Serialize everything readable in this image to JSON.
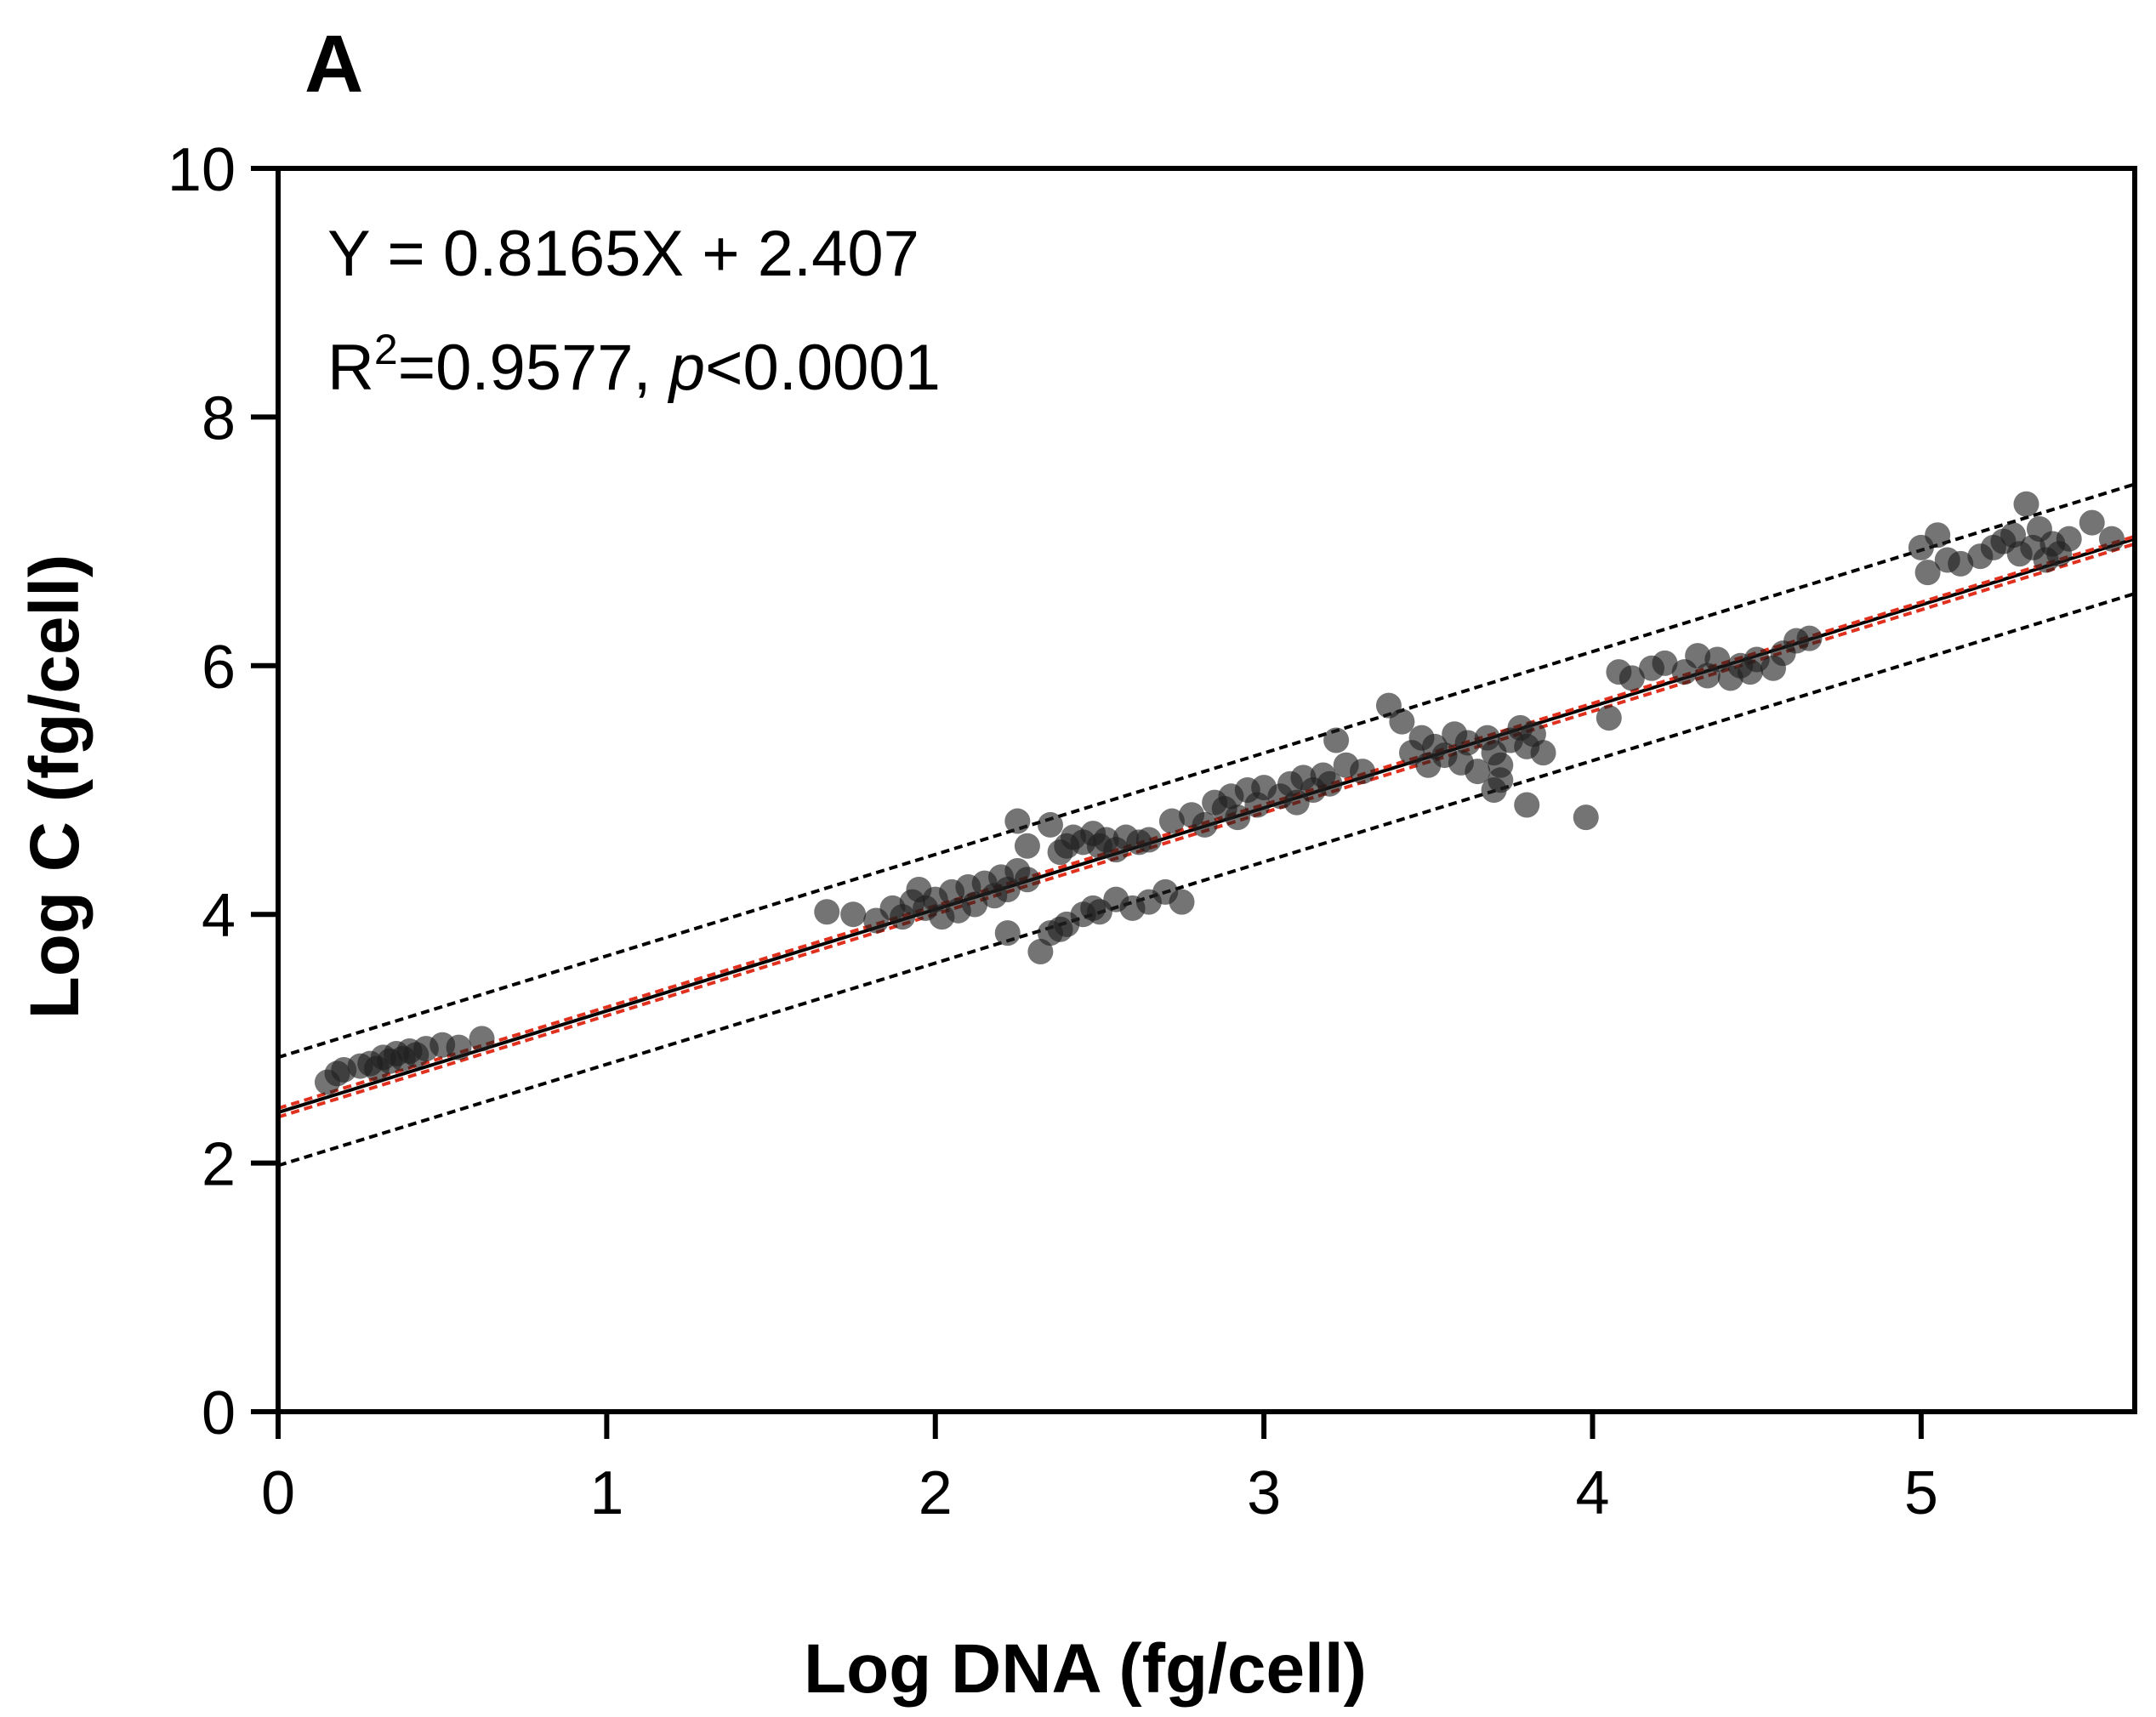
{
  "chart_data": {
    "type": "scatter",
    "panel_label": "A",
    "xlabel": "Log DNA (fg/cell)",
    "ylabel": "Log C (fg/cell)",
    "xlim": [
      0,
      5.65
    ],
    "ylim": [
      0,
      10
    ],
    "x_ticks": [
      "0",
      "1",
      "2",
      "3",
      "4",
      "5"
    ],
    "y_ticks": [
      "0",
      "2",
      "4",
      "6",
      "8",
      "10"
    ],
    "x_tick_values": [
      0,
      1,
      2,
      3,
      4,
      5
    ],
    "y_tick_values": [
      0,
      2,
      4,
      6,
      8,
      10
    ],
    "annotation": {
      "equation": "Y = 0.8165X + 2.407",
      "r2_prefix": "R",
      "r2_superscript": "2",
      "r2_value": "=0.9577, ",
      "p_symbol": "p",
      "p_value": "<0.0001"
    },
    "regression": {
      "slope": 0.8165,
      "intercept": 2.407,
      "color": "#000000"
    },
    "confidence_band": {
      "upper": [
        2.44,
        7.04
      ],
      "lower": [
        2.37,
        6.98
      ],
      "color": "#e0301e"
    },
    "prediction_band": {
      "upper": [
        2.85,
        7.46
      ],
      "lower": [
        1.98,
        6.58
      ],
      "color": "#000000"
    },
    "points": [
      [
        0.15,
        2.65
      ],
      [
        0.18,
        2.72
      ],
      [
        0.2,
        2.75
      ],
      [
        0.25,
        2.78
      ],
      [
        0.28,
        2.8
      ],
      [
        0.3,
        2.76
      ],
      [
        0.32,
        2.85
      ],
      [
        0.34,
        2.82
      ],
      [
        0.36,
        2.88
      ],
      [
        0.38,
        2.84
      ],
      [
        0.4,
        2.9
      ],
      [
        0.42,
        2.87
      ],
      [
        0.45,
        2.92
      ],
      [
        0.5,
        2.95
      ],
      [
        0.55,
        2.93
      ],
      [
        0.62,
        3.0
      ],
      [
        1.67,
        4.02
      ],
      [
        1.75,
        4.0
      ],
      [
        1.82,
        3.95
      ],
      [
        1.87,
        4.05
      ],
      [
        1.9,
        3.98
      ],
      [
        1.93,
        4.1
      ],
      [
        1.95,
        4.2
      ],
      [
        1.97,
        4.05
      ],
      [
        2.0,
        4.12
      ],
      [
        2.02,
        3.98
      ],
      [
        2.05,
        4.18
      ],
      [
        2.07,
        4.03
      ],
      [
        2.1,
        4.22
      ],
      [
        2.12,
        4.08
      ],
      [
        2.15,
        4.25
      ],
      [
        2.18,
        4.15
      ],
      [
        2.2,
        4.3
      ],
      [
        2.22,
        4.2
      ],
      [
        2.25,
        4.35
      ],
      [
        2.28,
        4.28
      ],
      [
        2.22,
        3.85
      ],
      [
        2.25,
        4.75
      ],
      [
        2.28,
        4.55
      ],
      [
        2.35,
        4.72
      ],
      [
        2.38,
        4.5
      ],
      [
        2.4,
        4.55
      ],
      [
        2.42,
        4.62
      ],
      [
        2.45,
        4.58
      ],
      [
        2.48,
        4.65
      ],
      [
        2.5,
        4.55
      ],
      [
        2.52,
        4.6
      ],
      [
        2.55,
        4.52
      ],
      [
        2.58,
        4.62
      ],
      [
        2.62,
        4.58
      ],
      [
        2.65,
        4.6
      ],
      [
        2.32,
        3.7
      ],
      [
        2.35,
        3.85
      ],
      [
        2.38,
        3.88
      ],
      [
        2.4,
        3.92
      ],
      [
        2.45,
        4.0
      ],
      [
        2.48,
        4.05
      ],
      [
        2.5,
        4.02
      ],
      [
        2.55,
        4.12
      ],
      [
        2.6,
        4.05
      ],
      [
        2.65,
        4.1
      ],
      [
        2.7,
        4.18
      ],
      [
        2.75,
        4.1
      ],
      [
        2.72,
        4.75
      ],
      [
        2.78,
        4.8
      ],
      [
        2.82,
        4.72
      ],
      [
        2.85,
        4.9
      ],
      [
        2.88,
        4.85
      ],
      [
        2.9,
        4.95
      ],
      [
        2.92,
        4.78
      ],
      [
        2.95,
        5.0
      ],
      [
        2.98,
        4.88
      ],
      [
        3.0,
        5.02
      ],
      [
        3.05,
        4.95
      ],
      [
        3.08,
        5.05
      ],
      [
        3.1,
        4.9
      ],
      [
        3.12,
        5.1
      ],
      [
        3.15,
        5.0
      ],
      [
        3.18,
        5.12
      ],
      [
        3.2,
        5.05
      ],
      [
        3.25,
        5.2
      ],
      [
        3.3,
        5.15
      ],
      [
        3.22,
        5.4
      ],
      [
        3.38,
        5.68
      ],
      [
        3.42,
        5.55
      ],
      [
        3.45,
        5.3
      ],
      [
        3.48,
        5.42
      ],
      [
        3.5,
        5.2
      ],
      [
        3.52,
        5.35
      ],
      [
        3.55,
        5.28
      ],
      [
        3.58,
        5.45
      ],
      [
        3.6,
        5.22
      ],
      [
        3.62,
        5.38
      ],
      [
        3.65,
        5.15
      ],
      [
        3.68,
        5.42
      ],
      [
        3.7,
        5.3
      ],
      [
        3.72,
        5.2
      ],
      [
        3.75,
        5.4
      ],
      [
        3.78,
        5.5
      ],
      [
        3.8,
        5.35
      ],
      [
        3.82,
        5.45
      ],
      [
        3.7,
        5.0
      ],
      [
        3.72,
        5.08
      ],
      [
        3.85,
        5.3
      ],
      [
        3.8,
        4.88
      ],
      [
        3.98,
        4.78
      ],
      [
        4.05,
        5.58
      ],
      [
        4.08,
        5.95
      ],
      [
        4.12,
        5.9
      ],
      [
        4.18,
        5.98
      ],
      [
        4.22,
        6.02
      ],
      [
        4.28,
        5.95
      ],
      [
        4.32,
        6.08
      ],
      [
        4.35,
        5.92
      ],
      [
        4.38,
        6.05
      ],
      [
        4.42,
        5.9
      ],
      [
        4.45,
        6.0
      ],
      [
        4.48,
        5.95
      ],
      [
        4.5,
        6.05
      ],
      [
        4.55,
        5.98
      ],
      [
        4.58,
        6.1
      ],
      [
        4.62,
        6.2
      ],
      [
        4.66,
        6.22
      ],
      [
        5.0,
        6.95
      ],
      [
        5.02,
        6.75
      ],
      [
        5.05,
        7.05
      ],
      [
        5.08,
        6.85
      ],
      [
        5.12,
        6.82
      ],
      [
        5.18,
        6.88
      ],
      [
        5.22,
        6.95
      ],
      [
        5.25,
        7.0
      ],
      [
        5.28,
        7.05
      ],
      [
        5.3,
        6.9
      ],
      [
        5.32,
        7.3
      ],
      [
        5.34,
        6.95
      ],
      [
        5.36,
        7.1
      ],
      [
        5.38,
        6.85
      ],
      [
        5.4,
        6.98
      ],
      [
        5.42,
        6.9
      ],
      [
        5.45,
        7.02
      ],
      [
        5.52,
        7.15
      ],
      [
        5.58,
        7.02
      ]
    ]
  }
}
